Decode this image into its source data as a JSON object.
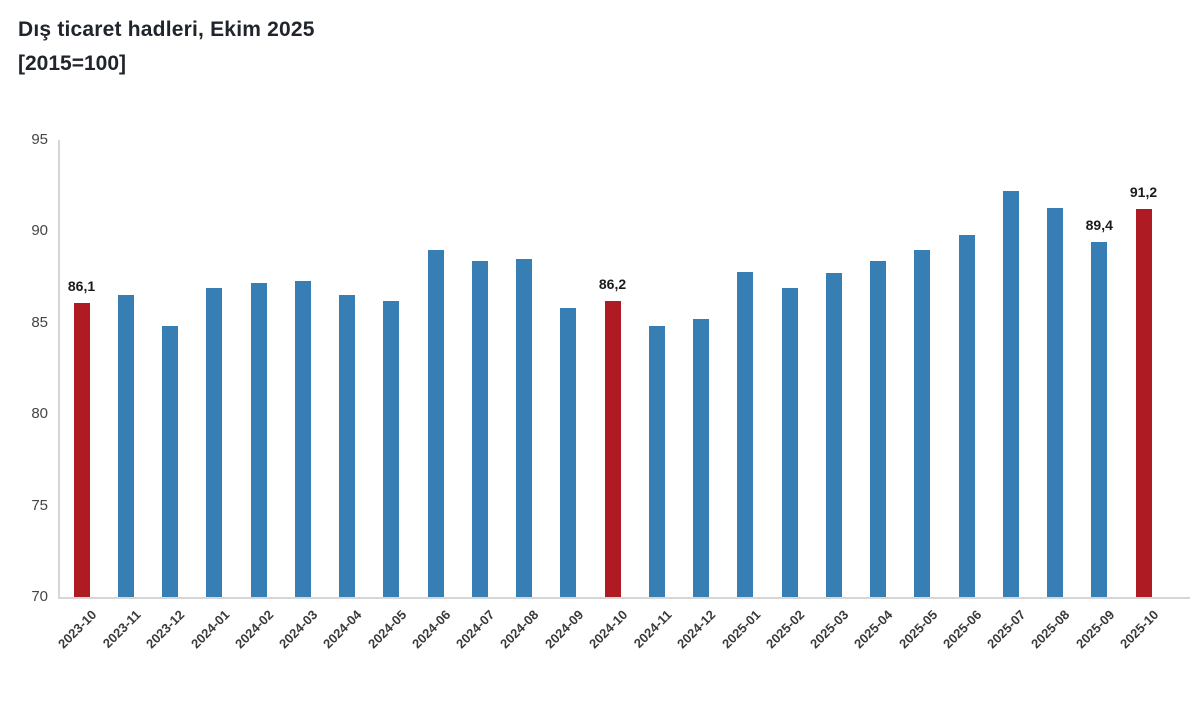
{
  "header": {
    "title": "Dış ticaret hadleri, Ekim 2025",
    "subtitle": "[2015=100]"
  },
  "chart_data": {
    "type": "bar",
    "title": "Dış ticaret hadleri, Ekim 2025",
    "subtitle": "[2015=100]",
    "xlabel": "",
    "ylabel": "",
    "ylim": [
      70,
      95
    ],
    "yticks": [
      70,
      75,
      80,
      85,
      90,
      95
    ],
    "grid": false,
    "legend": null,
    "categories": [
      "2023-10",
      "2023-11",
      "2023-12",
      "2024-01",
      "2024-02",
      "2024-03",
      "2024-04",
      "2024-05",
      "2024-06",
      "2024-07",
      "2024-08",
      "2024-09",
      "2024-10",
      "2024-11",
      "2024-12",
      "2025-01",
      "2025-02",
      "2025-03",
      "2025-04",
      "2025-05",
      "2025-06",
      "2025-07",
      "2025-08",
      "2025-09",
      "2025-10"
    ],
    "values": [
      86.1,
      86.5,
      84.8,
      86.9,
      87.2,
      87.3,
      86.5,
      86.2,
      89.0,
      88.4,
      88.5,
      85.8,
      86.2,
      84.8,
      85.2,
      87.8,
      86.9,
      87.7,
      88.4,
      89.0,
      89.8,
      92.2,
      91.3,
      89.4,
      91.2
    ],
    "colors": {
      "default_bar": "#377EB5",
      "highlight_bar": "#AE1B22",
      "axis_line": "#d6d6d6",
      "tick_text": "#454545",
      "data_label_text": "#1b1b1b",
      "title_text": "#20242c"
    },
    "highlight_indices": [
      0,
      12,
      24
    ],
    "data_labels": [
      {
        "index": 0,
        "text": "86,1"
      },
      {
        "index": 12,
        "text": "86,2"
      },
      {
        "index": 23,
        "text": "89,4"
      },
      {
        "index": 24,
        "text": "91,2"
      }
    ]
  }
}
